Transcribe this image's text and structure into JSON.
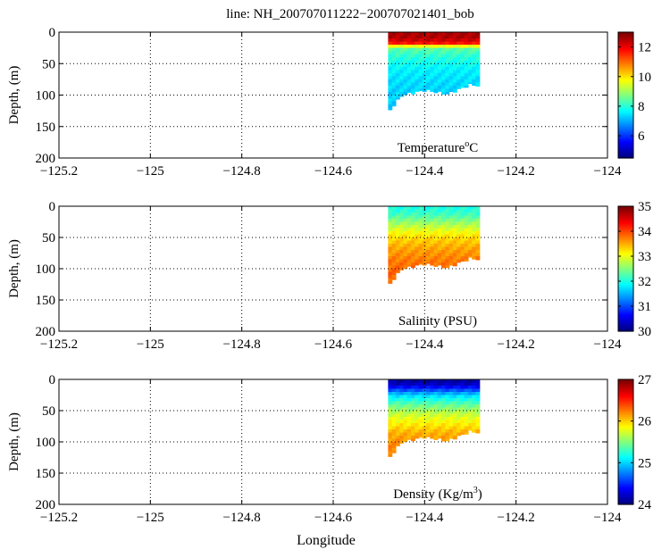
{
  "figure_title": "line: NH_200707011222−200707021401_bob",
  "xlabel": "Longitude",
  "chart_data": [
    {
      "type": "heatmap",
      "id": "temperature",
      "label": "Temperature",
      "label_super": "o",
      "label_unit": "C",
      "ylabel": "Depth, (m)",
      "xlim": [
        -125.2,
        -124.0
      ],
      "ylim": [
        0,
        200
      ],
      "xticks": [
        "−125.2",
        "−125",
        "−124.8",
        "−124.6",
        "−124.4",
        "−124.2",
        "−124"
      ],
      "yticks": [
        "0",
        "50",
        "100",
        "150",
        "200"
      ],
      "grid": true,
      "colorbar": {
        "min": 4.5,
        "max": 13,
        "ticks": [
          "6",
          "8",
          "10",
          "12"
        ]
      },
      "section": {
        "lon_range": [
          -124.48,
          -124.28
        ],
        "bottom_depth_lon": [
          -124.48,
          -124.45,
          -124.4,
          -124.35,
          -124.3,
          -124.28
        ],
        "bottom_depth_m": [
          127,
          100,
          92,
          98,
          83,
          85
        ],
        "profile_depth_m": [
          0,
          10,
          18,
          25,
          40,
          60,
          80,
          100,
          130
        ],
        "profile_values": [
          12.6,
          12.6,
          11.8,
          8.5,
          8.0,
          7.6,
          7.4,
          7.3,
          7.3
        ]
      }
    },
    {
      "type": "heatmap",
      "id": "salinity",
      "label": "Salinity (PSU)",
      "ylabel": "Depth, (m)",
      "xlim": [
        -125.2,
        -124.0
      ],
      "ylim": [
        0,
        200
      ],
      "xticks": [
        "−125.2",
        "−125",
        "−124.8",
        "−124.6",
        "−124.4",
        "−124.2",
        "−124"
      ],
      "yticks": [
        "0",
        "50",
        "100",
        "150",
        "200"
      ],
      "grid": true,
      "colorbar": {
        "min": 30,
        "max": 35,
        "ticks": [
          "30",
          "31",
          "32",
          "33",
          "34",
          "35"
        ]
      },
      "section": {
        "lon_range": [
          -124.48,
          -124.28
        ],
        "bottom_depth_lon": [
          -124.48,
          -124.45,
          -124.4,
          -124.35,
          -124.3,
          -124.28
        ],
        "bottom_depth_m": [
          127,
          100,
          92,
          98,
          83,
          85
        ],
        "profile_depth_m": [
          0,
          10,
          20,
          35,
          50,
          70,
          90,
          110,
          130
        ],
        "profile_values": [
          32.0,
          32.1,
          32.4,
          32.9,
          33.3,
          33.6,
          33.8,
          33.9,
          33.9
        ]
      }
    },
    {
      "type": "heatmap",
      "id": "density",
      "label": "Density (Kg/m",
      "label_super": "3",
      "label_unit": ")",
      "ylabel": "Depth, (m)",
      "xlim": [
        -125.2,
        -124.0
      ],
      "ylim": [
        0,
        200
      ],
      "xticks": [
        "−125.2",
        "−125",
        "−124.8",
        "−124.6",
        "−124.4",
        "−124.2",
        "−124"
      ],
      "yticks": [
        "0",
        "50",
        "100",
        "150",
        "200"
      ],
      "grid": true,
      "colorbar": {
        "min": 24,
        "max": 27,
        "ticks": [
          "24",
          "25",
          "26",
          "27"
        ]
      },
      "section": {
        "lon_range": [
          -124.48,
          -124.28
        ],
        "bottom_depth_lon": [
          -124.48,
          -124.45,
          -124.4,
          -124.35,
          -124.3,
          -124.28
        ],
        "bottom_depth_m": [
          127,
          100,
          92,
          98,
          83,
          85
        ],
        "profile_depth_m": [
          0,
          8,
          15,
          25,
          40,
          55,
          70,
          85,
          100,
          130
        ],
        "profile_values": [
          24.05,
          24.2,
          24.5,
          25.0,
          25.4,
          25.7,
          25.9,
          26.1,
          26.2,
          26.3
        ]
      }
    }
  ]
}
